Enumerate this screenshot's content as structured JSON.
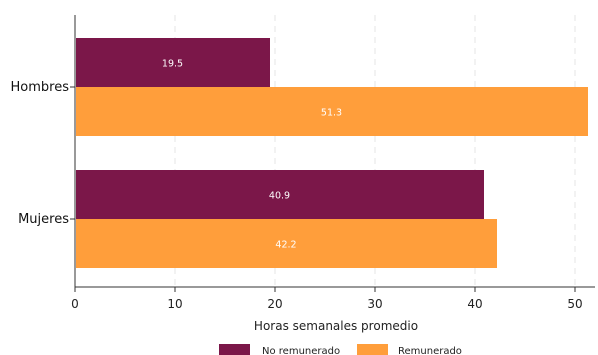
{
  "chart_data": {
    "type": "bar",
    "orientation": "horizontal",
    "categories": [
      "Hombres",
      "Mujeres"
    ],
    "series": [
      {
        "name": "No remunerado",
        "values": [
          19.5,
          40.9
        ],
        "color": "#7b1749"
      },
      {
        "name": "Remunerado",
        "values": [
          51.3,
          42.2
        ],
        "color": "#ff9e3b"
      }
    ],
    "xlabel": "Horas semanales promedio",
    "ylabel": "",
    "xlim": [
      0,
      52
    ],
    "xticks": [
      0,
      10,
      20,
      30,
      40,
      50
    ],
    "grid": "vertical dashed",
    "legend": "bottom"
  }
}
